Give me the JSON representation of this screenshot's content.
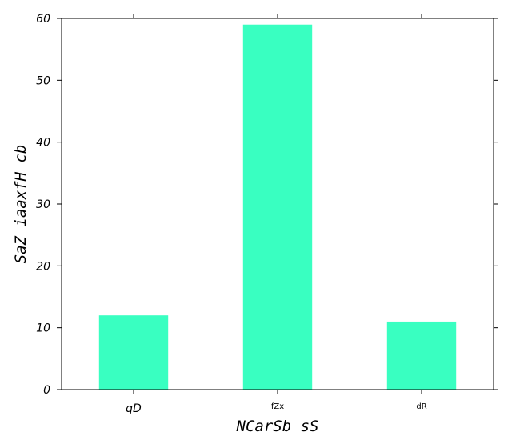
{
  "chart_data": {
    "type": "bar",
    "title": "",
    "xlabel": "NCarSb sS",
    "ylabel": "SaZ iaaxfH cb",
    "categories": [
      "qD",
      "fZx",
      "dR"
    ],
    "values": [
      12,
      59,
      11
    ],
    "ylim": [
      0,
      60
    ],
    "yticks": [
      0,
      10,
      20,
      30,
      40,
      50,
      60
    ],
    "bar_color": "#39ffc1",
    "grid": false,
    "legend": "none"
  }
}
